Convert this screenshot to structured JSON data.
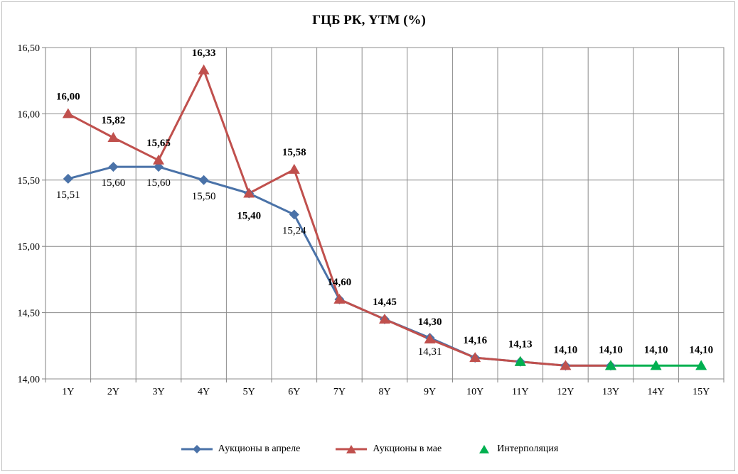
{
  "chart_data": {
    "type": "line",
    "title": "ГЦБ РК, YTM (%)",
    "xlabel": "",
    "ylabel": "",
    "categories": [
      "1Y",
      "2Y",
      "3Y",
      "4Y",
      "5Y",
      "6Y",
      "7Y",
      "8Y",
      "9Y",
      "10Y",
      "11Y",
      "12Y",
      "13Y",
      "14Y",
      "15Y"
    ],
    "ylim": [
      14.0,
      16.5
    ],
    "yticks": [
      14.0,
      14.5,
      15.0,
      15.5,
      16.0,
      16.5
    ],
    "ytick_labels": [
      "14,00",
      "14,50",
      "15,00",
      "15,50",
      "16,00",
      "16,50"
    ],
    "grid": true,
    "legend_position": "bottom",
    "series": [
      {
        "name": "Аукционы в апреле",
        "color": "#4a72a8",
        "marker": "diamond",
        "values": [
          15.51,
          15.6,
          15.6,
          15.5,
          15.4,
          15.24,
          14.6,
          14.45,
          14.31,
          14.16,
          14.13,
          14.1,
          14.1,
          null,
          null
        ],
        "labels": [
          "15,51",
          "15,60",
          "15,60",
          "15,50",
          "",
          "15,24",
          "",
          "",
          "14,31",
          "",
          "",
          "",
          "",
          "",
          ""
        ]
      },
      {
        "name": "Аукционы в мае",
        "color": "#c0504d",
        "marker": "triangle",
        "values": [
          16.0,
          15.82,
          15.65,
          16.33,
          15.4,
          15.58,
          14.6,
          14.45,
          14.3,
          14.16,
          14.13,
          14.1,
          14.1,
          null,
          null
        ],
        "labels": [
          "16,00",
          "15,82",
          "15,65",
          "16,33",
          "15,40",
          "15,58",
          "14,60",
          "14,45",
          "14,30",
          "14,16",
          "14,13",
          "14,10",
          "14,10",
          "",
          ""
        ]
      },
      {
        "name": "Интерполяция",
        "color": "#00b050",
        "marker": "triangle",
        "values": [
          null,
          null,
          null,
          null,
          null,
          null,
          null,
          null,
          null,
          null,
          14.13,
          null,
          14.1,
          14.1,
          14.1
        ],
        "labels": [
          "",
          "",
          "",
          "",
          "",
          "",
          "",
          "",
          "",
          "",
          "",
          "",
          "",
          "14,10",
          "14,10"
        ]
      }
    ]
  }
}
